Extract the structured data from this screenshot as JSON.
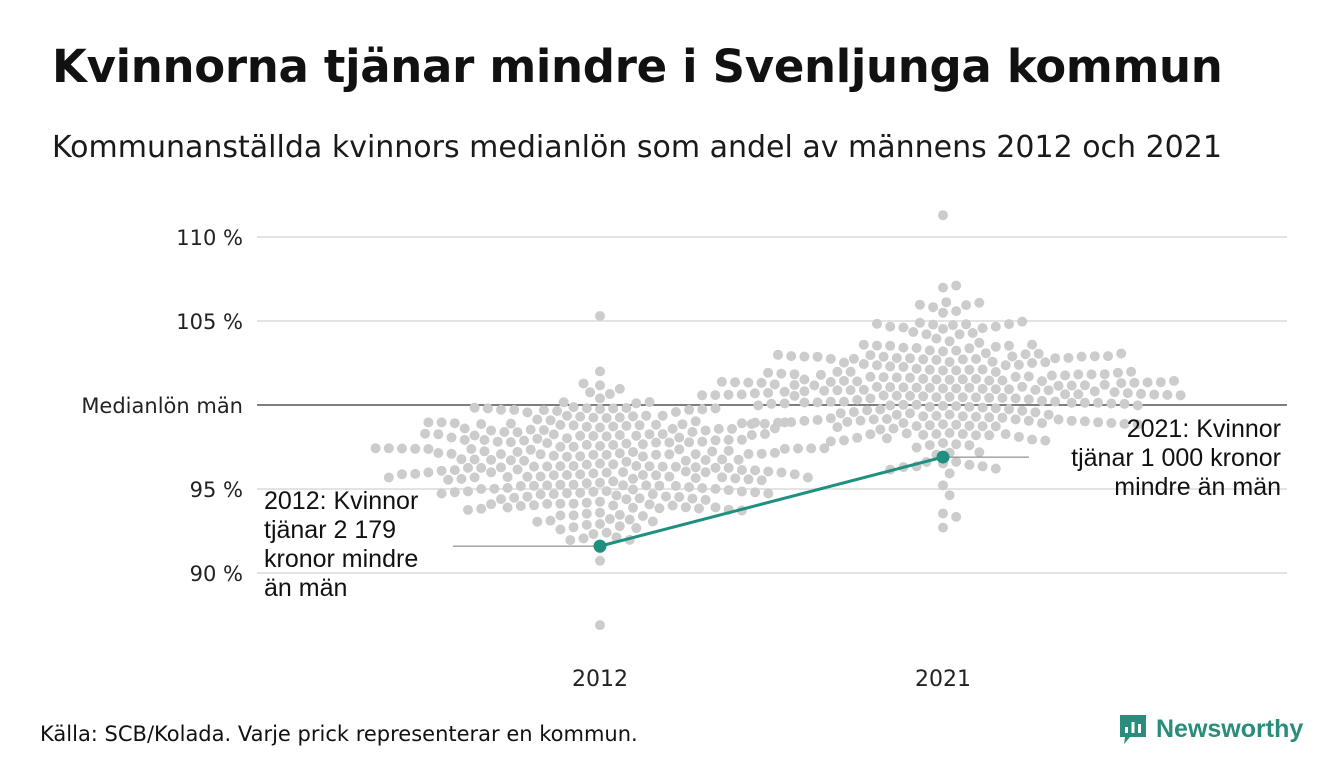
{
  "title": "Kvinnorna tjänar mindre i Svenljunga kommun",
  "subtitle": "Kommunanställda kvinnors medianlön som andel av männens 2012 och 2021",
  "source": "Källa: SCB/Kolada. Varje prick representerar en kommun.",
  "brand": {
    "name": "Newsworthy",
    "icon": "newsworthy-logo-icon",
    "color": "#2a8c7a"
  },
  "colors": {
    "dots": "#cccccc",
    "highlight": "#1f9080",
    "grid": "#e3e3e3",
    "reference": "#333333"
  },
  "chart_data": {
    "type": "scatter",
    "subtype": "beeswarm",
    "categories": [
      "2012",
      "2021"
    ],
    "y_unit": "%",
    "ylim": [
      86.5,
      111.5
    ],
    "y_ticks": [
      {
        "value": 90,
        "label": "90 %"
      },
      {
        "value": 95,
        "label": "95 %"
      },
      {
        "value": 100,
        "label": "Medianlön män"
      },
      {
        "value": 105,
        "label": "105 %"
      },
      {
        "value": 110,
        "label": "110 %"
      }
    ],
    "reference_line": {
      "value": 100,
      "label": "Medianlön män"
    },
    "grid": true,
    "highlight_series": {
      "name": "Svenljunga",
      "points": [
        {
          "category": "2012",
          "value": 91.6
        },
        {
          "category": "2021",
          "value": 96.9
        }
      ]
    },
    "annotations": [
      {
        "category": "2012",
        "lines": [
          "2012: Kvinnor",
          "tjänar 2 179",
          "kronor mindre",
          "än män"
        ]
      },
      {
        "category": "2021",
        "lines": [
          "2021: Kvinnor",
          "tjänar 1 000 kronor",
          "mindre än män"
        ]
      }
    ],
    "distribution": [
      {
        "category": "2012",
        "count": 290,
        "min": 86.9,
        "max": 105.3,
        "median": 96.5
      },
      {
        "category": "2021",
        "count": 290,
        "min": 92.7,
        "max": 111.3,
        "median": 101.0
      }
    ]
  }
}
